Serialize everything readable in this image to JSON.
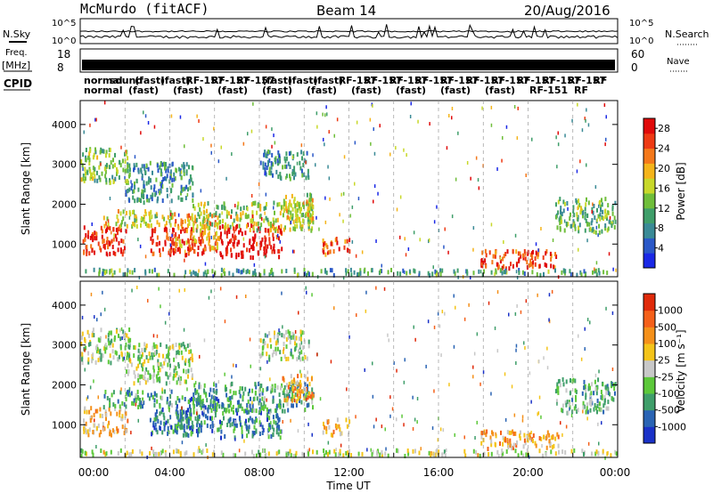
{
  "header": {
    "title": "McMurdo (fitACF)",
    "beam": "Beam 14",
    "date": "20/Aug/2016"
  },
  "side_labels": {
    "nsky": "N.Sky",
    "nsearch": "N.Search",
    "freq": "Freq.",
    "freq_unit": "[MHz]",
    "nave": "Nave",
    "cpid": "CPID"
  },
  "noise_axis": {
    "left_ticks": [
      "10^5",
      "10^0"
    ],
    "right_ticks": [
      "10^5",
      "10^0"
    ]
  },
  "freq_axis": {
    "left_ticks": [
      "18",
      "8"
    ],
    "right_ticks": [
      "60",
      "0"
    ]
  },
  "cpid_labels": {
    "row1": [
      "normal",
      "sound",
      "(fast)",
      "(fast)",
      "RF-157",
      "RF-157",
      "RF-157",
      "(fast)",
      "(fast)",
      "(fast)",
      "RF-157",
      "RF-157",
      "RF-157",
      "RF-157",
      "RF-157",
      "RF-157",
      "RF-157",
      "RF-157",
      "RF-157",
      "RF-157",
      "RF"
    ],
    "row2": [
      "normal",
      "(fast)",
      "(fast)",
      "(fast)",
      "(fast)",
      "(fast)",
      "(fast)",
      "(fast)",
      "(fast)",
      "(fast)",
      "RF-151",
      "RF"
    ]
  },
  "chart_data": [
    {
      "type": "heatmap",
      "name": "power",
      "ylabel": "Slant Range [km]",
      "xlim_hours": [
        0,
        24
      ],
      "ylim_km": [
        180,
        4600
      ],
      "yticks": [
        "1000",
        "2000",
        "3000",
        "4000"
      ],
      "colorbar": {
        "label": "Power [dB]",
        "ticks": [
          "28",
          "24",
          "20",
          "16",
          "12",
          "8",
          "4"
        ],
        "range": [
          0,
          30
        ],
        "colors": [
          "#1a28e6",
          "#2a58c8",
          "#3a8a96",
          "#3f9e6a",
          "#6fbe3a",
          "#c8d82a",
          "#f4b41a",
          "#f4781a",
          "#ee3a14",
          "#e00a0a"
        ]
      },
      "regions": [
        {
          "t": [
            0.1,
            2.1
          ],
          "r": [
            700,
            1400
          ],
          "level": 0.9
        },
        {
          "t": [
            1.0,
            4.2
          ],
          "r": [
            1400,
            1800
          ],
          "level": 0.55
        },
        {
          "t": [
            3.1,
            5.6
          ],
          "r": [
            680,
            1350
          ],
          "level": 0.92
        },
        {
          "t": [
            4.2,
            6.2
          ],
          "r": [
            800,
            1700
          ],
          "level": 0.7
        },
        {
          "t": [
            6.2,
            9.0
          ],
          "r": [
            620,
            1450
          ],
          "level": 0.96
        },
        {
          "t": [
            5.0,
            10.4
          ],
          "r": [
            1300,
            2000
          ],
          "level": 0.5
        },
        {
          "t": [
            9.0,
            10.4
          ],
          "r": [
            1500,
            2200
          ],
          "level": 0.55
        },
        {
          "t": [
            0.0,
            2.2
          ],
          "r": [
            2500,
            3350
          ],
          "level": 0.45
        },
        {
          "t": [
            2.0,
            5.0
          ],
          "r": [
            2000,
            3000
          ],
          "level": 0.3
        },
        {
          "t": [
            8.0,
            10.2
          ],
          "r": [
            2600,
            3300
          ],
          "level": 0.3
        },
        {
          "t": [
            10.8,
            12.0
          ],
          "r": [
            700,
            1100
          ],
          "level": 0.8
        },
        {
          "t": [
            17.8,
            21.4
          ],
          "r": [
            350,
            800
          ],
          "level": 0.85
        },
        {
          "t": [
            21.2,
            23.9
          ],
          "r": [
            1250,
            2100
          ],
          "level": 0.4
        },
        {
          "t": [
            0.0,
            24.0
          ],
          "r": [
            180,
            320
          ],
          "level": 0.35
        }
      ]
    },
    {
      "type": "heatmap",
      "name": "velocity",
      "ylabel": "Slant Range [km]",
      "xlabel": "Time UT",
      "xlim_hours": [
        0,
        24
      ],
      "ylim_km": [
        180,
        4600
      ],
      "yticks": [
        "1000",
        "2000",
        "3000",
        "4000"
      ],
      "xticks": [
        "00:00",
        "04:00",
        "08:00",
        "12:00",
        "16:00",
        "20:00",
        "00:00"
      ],
      "colorbar": {
        "label": "Velocity [m s⁻¹]",
        "ticks": [
          "1000",
          "500",
          "100",
          "25",
          "-25",
          "-100",
          "-500",
          "-1000"
        ],
        "colors": [
          "#1a32c8",
          "#2a64b4",
          "#3f9e6a",
          "#5cc83a",
          "#c8c8c8",
          "#f4c41a",
          "#f4901a",
          "#f4601a",
          "#e02a0a"
        ]
      },
      "regions": [
        {
          "t": [
            0.1,
            2.1
          ],
          "r": [
            700,
            1400
          ],
          "level": 0.62
        },
        {
          "t": [
            1.0,
            4.2
          ],
          "r": [
            1400,
            1800
          ],
          "level": 0.3
        },
        {
          "t": [
            3.1,
            5.6
          ],
          "r": [
            680,
            1350
          ],
          "level": 0.25
        },
        {
          "t": [
            4.2,
            6.2
          ],
          "r": [
            800,
            1700
          ],
          "level": 0.25
        },
        {
          "t": [
            6.2,
            9.0
          ],
          "r": [
            620,
            1450
          ],
          "level": 0.25
        },
        {
          "t": [
            5.0,
            10.4
          ],
          "r": [
            1300,
            2000
          ],
          "level": 0.3
        },
        {
          "t": [
            9.0,
            10.4
          ],
          "r": [
            1500,
            2200
          ],
          "level": 0.65
        },
        {
          "t": [
            0.0,
            2.2
          ],
          "r": [
            2500,
            3350
          ],
          "level": 0.45
        },
        {
          "t": [
            2.0,
            5.0
          ],
          "r": [
            2000,
            3000
          ],
          "level": 0.45
        },
        {
          "t": [
            8.0,
            10.2
          ],
          "r": [
            2600,
            3300
          ],
          "level": 0.45
        },
        {
          "t": [
            10.8,
            12.0
          ],
          "r": [
            700,
            1100
          ],
          "level": 0.65
        },
        {
          "t": [
            17.8,
            21.4
          ],
          "r": [
            350,
            800
          ],
          "level": 0.66
        },
        {
          "t": [
            21.2,
            23.9
          ],
          "r": [
            1250,
            2100
          ],
          "level": 0.35
        },
        {
          "t": [
            0.0,
            24.0
          ],
          "r": [
            180,
            320
          ],
          "level": 0.5
        }
      ]
    }
  ]
}
